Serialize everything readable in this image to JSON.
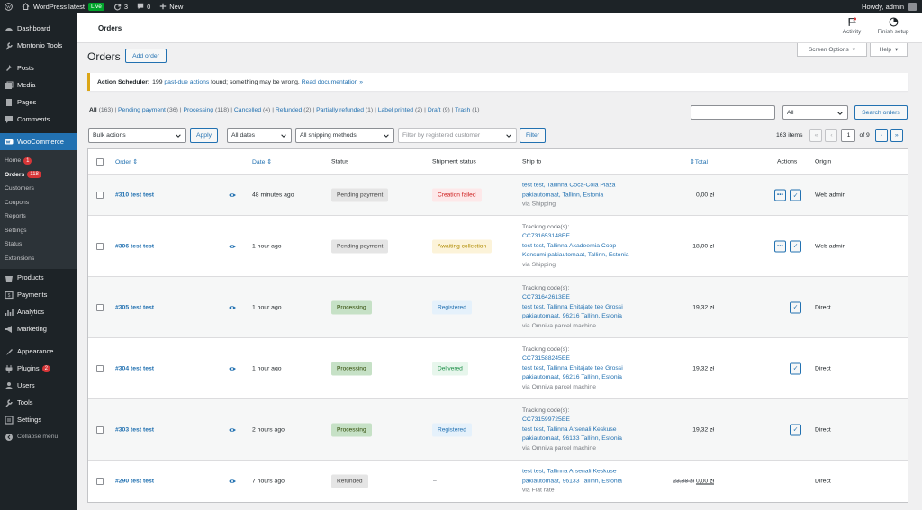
{
  "adminbar": {
    "site": "WordPress latest",
    "live": "Live",
    "updates": "3",
    "comments": "0",
    "new": "New",
    "howdy": "Howdy, admin"
  },
  "menu": {
    "items_top": [
      {
        "label": "Dashboard",
        "icon": "dashboard-icon"
      },
      {
        "label": "Montonio Tools",
        "icon": "wrench-icon"
      }
    ],
    "items_mid": [
      {
        "label": "Posts",
        "icon": "pin-icon"
      },
      {
        "label": "Media",
        "icon": "media-icon"
      },
      {
        "label": "Pages",
        "icon": "pages-icon"
      },
      {
        "label": "Comments",
        "icon": "comment-icon"
      }
    ],
    "woo": {
      "label": "WooCommerce",
      "sub": [
        {
          "label": "Home",
          "badge": "1"
        },
        {
          "label": "Orders",
          "badge": "118"
        },
        {
          "label": "Customers"
        },
        {
          "label": "Coupons"
        },
        {
          "label": "Reports"
        },
        {
          "label": "Settings"
        },
        {
          "label": "Status"
        },
        {
          "label": "Extensions"
        }
      ]
    },
    "items_low": [
      {
        "label": "Products",
        "icon": "products-icon"
      },
      {
        "label": "Payments",
        "icon": "payments-icon"
      },
      {
        "label": "Analytics",
        "icon": "analytics-icon"
      },
      {
        "label": "Marketing",
        "icon": "marketing-icon"
      }
    ],
    "items_bot": [
      {
        "label": "Appearance",
        "icon": "appearance-icon"
      },
      {
        "label": "Plugins",
        "icon": "plugins-icon",
        "badge": "2"
      },
      {
        "label": "Users",
        "icon": "users-icon"
      },
      {
        "label": "Tools",
        "icon": "tools-icon"
      },
      {
        "label": "Settings",
        "icon": "settings-icon"
      }
    ],
    "collapse": "Collapse menu"
  },
  "header": {
    "title": "Orders",
    "activity": "Activity",
    "finish": "Finish setup",
    "screen_options": "Screen Options",
    "help": "Help"
  },
  "page": {
    "title": "Orders",
    "add_order": "Add order"
  },
  "notice": {
    "bold": "Action Scheduler:",
    "text1": "199",
    "link1": "past-due actions",
    "text2": "found; something may be wrong.",
    "link2": "Read documentation »"
  },
  "filters": {
    "views": [
      {
        "label": "All",
        "count": "(163)"
      },
      {
        "label": "Pending payment",
        "count": "(36)"
      },
      {
        "label": "Processing",
        "count": "(118)"
      },
      {
        "label": "Cancelled",
        "count": "(4)"
      },
      {
        "label": "Refunded",
        "count": "(2)"
      },
      {
        "label": "Partially refunded",
        "count": "(1)"
      },
      {
        "label": "Label printed",
        "count": "(2)"
      },
      {
        "label": "Draft",
        "count": "(9)"
      },
      {
        "label": "Trash",
        "count": "(1)"
      }
    ],
    "search_status": "All",
    "search_button": "Search orders",
    "bulk": "Bulk actions",
    "apply": "Apply",
    "dates": "All dates",
    "shipping": "All shipping methods",
    "customer_placeholder": "Filter by registered customer",
    "filter": "Filter",
    "items": "163 items",
    "page_current": "1",
    "page_of": "of 9",
    "first": "«",
    "prev": "‹",
    "next": "›",
    "last": "»"
  },
  "table": {
    "headers": {
      "order": "Order",
      "date": "Date",
      "status": "Status",
      "shipment": "Shipment status",
      "ship_to": "Ship to",
      "total": "Total",
      "actions": "Actions",
      "origin": "Origin"
    },
    "rows": [
      {
        "order": "#310 test test",
        "date": "48 minutes ago",
        "status": "Pending payment",
        "shipment": "Creation failed",
        "ship_lines": [
          "test test, Tallinna Coca-Cola Plaza",
          "pakiautomaat, Tallinn, Estonia"
        ],
        "via": "via Shipping",
        "total": "0,00 zł",
        "origin": "Web admin"
      },
      {
        "order": "#306 test test",
        "date": "1 hour ago",
        "status": "Pending payment",
        "shipment": "Awaiting collection",
        "tracking_label": "Tracking code(s):",
        "tracking": "CC731653148EE",
        "ship_lines": [
          "test test, Tallinna Akadeemia Coop",
          "Konsumi pakiautomaat, Tallinn, Estonia"
        ],
        "via": "via Shipping",
        "total": "18,00 zł",
        "origin": "Web admin"
      },
      {
        "order": "#305 test test",
        "date": "1 hour ago",
        "status": "Processing",
        "shipment": "Registered",
        "tracking_label": "Tracking code(s):",
        "tracking": "CC731642613EE",
        "ship_lines": [
          "test test, Tallinna Ehitajate tee Grossi",
          "pakiautomaat, 96216 Tallinn, Estonia"
        ],
        "via": "via Omniva parcel machine",
        "total": "19,32 zł",
        "origin": "Direct"
      },
      {
        "order": "#304 test test",
        "date": "1 hour ago",
        "status": "Processing",
        "shipment": "Delivered",
        "tracking_label": "Tracking code(s):",
        "tracking": "CC731588245EE",
        "ship_lines": [
          "test test, Tallinna Ehitajate tee Grossi",
          "pakiautomaat, 96216 Tallinn, Estonia"
        ],
        "via": "via Omniva parcel machine",
        "total": "19,32 zł",
        "origin": "Direct"
      },
      {
        "order": "#303 test test",
        "date": "2 hours ago",
        "status": "Processing",
        "shipment": "Registered",
        "tracking_label": "Tracking code(s):",
        "tracking": "CC731599725EE",
        "ship_lines": [
          "test test, Tallinna Arsenali Keskuse",
          "pakiautomaat, 96133 Tallinn, Estonia"
        ],
        "via": "via Omniva parcel machine",
        "total": "19,32 zł",
        "origin": "Direct"
      },
      {
        "order": "#290 test test",
        "date": "7 hours ago",
        "status": "Refunded",
        "shipment": "–",
        "ship_lines": [
          "test test, Tallinna Arsenali Keskuse",
          "pakiautomaat, 96133 Tallinn, Estonia"
        ],
        "via": "via Flat rate",
        "total_old": "23,88 zł",
        "total": "0,00 zł",
        "origin": "Direct"
      }
    ]
  }
}
